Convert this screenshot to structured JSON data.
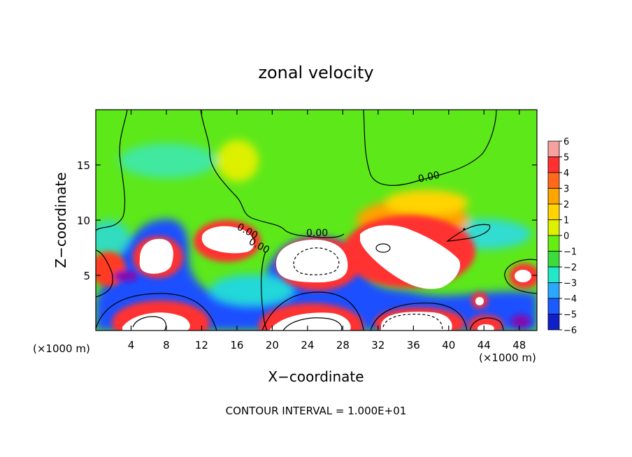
{
  "chart_data": {
    "type": "heatmap",
    "title": "zonal velocity",
    "xlabel": "X−coordinate",
    "ylabel": "Z−coordinate",
    "x_unit_left": "(×1000 m)",
    "x_unit_right": "(×1000 m)",
    "xlim": [
      0,
      50
    ],
    "ylim": [
      0,
      20
    ],
    "x_ticks": [
      4,
      8,
      12,
      16,
      20,
      24,
      28,
      32,
      36,
      40,
      44,
      48
    ],
    "y_ticks": [
      5,
      10,
      15
    ],
    "colorbar": {
      "levels": [
        6,
        5,
        4,
        3,
        2,
        1,
        0,
        -1,
        -2,
        -3,
        -4,
        -5,
        -6
      ],
      "labels": [
        "6",
        "5",
        "4",
        "3",
        "2",
        "1",
        "0",
        "−1",
        "−2",
        "−3",
        "−4",
        "−5",
        "−6"
      ],
      "colors": [
        "#f7a0a0",
        "#ff3030",
        "#ff6a1a",
        "#ffa500",
        "#ffd400",
        "#ddf000",
        "#66ee10",
        "#3bdc3b",
        "#22e8c8",
        "#2aa8ff",
        "#1a5aff",
        "#1020c8",
        "#8010b0"
      ]
    },
    "contour_labels": [
      "0.00",
      "0.00",
      "0.00",
      "0.00"
    ],
    "footnote": "CONTOUR INTERVAL = 1.000E+01"
  }
}
